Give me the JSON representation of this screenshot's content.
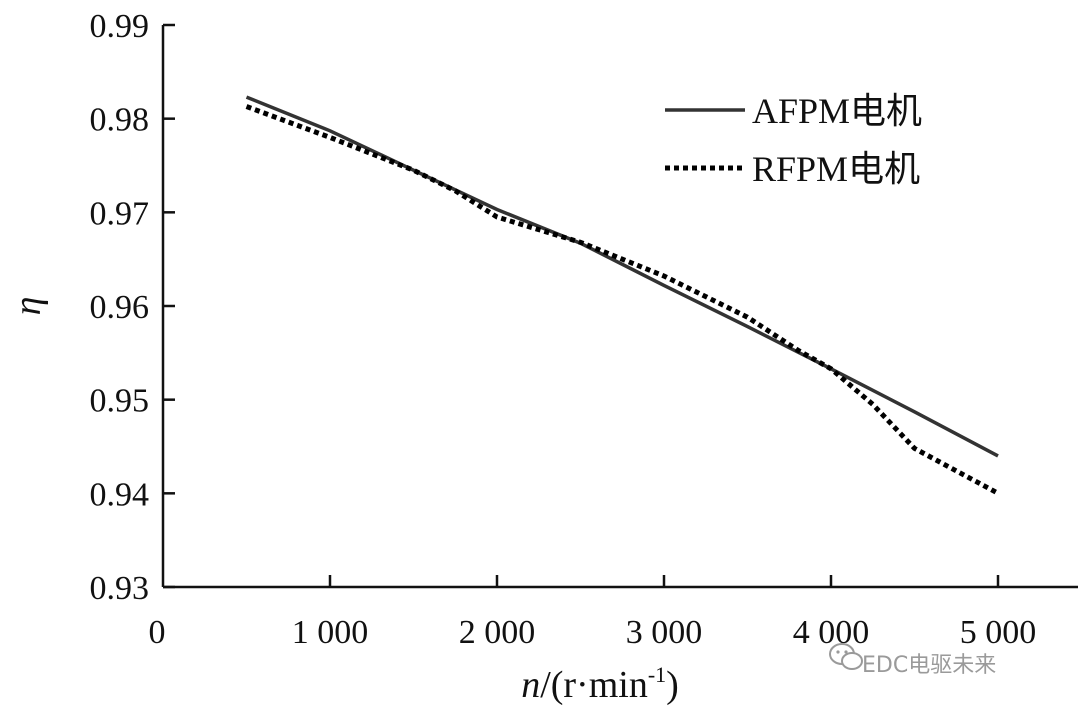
{
  "chart_data": {
    "type": "line",
    "xlabel": {
      "italic": "n",
      "text": "/(r·min",
      "sup": "-1",
      "close": ")"
    },
    "ylabel": "η",
    "xlim": [
      0,
      5500
    ],
    "ylim": [
      0.93,
      0.99
    ],
    "xticks": [
      0,
      1000,
      2000,
      3000,
      4000,
      5000
    ],
    "xtick_labels": [
      "0",
      "1 000",
      "2 000",
      "3 000",
      "4 000",
      "5 000"
    ],
    "yticks": [
      0.93,
      0.94,
      0.95,
      0.96,
      0.97,
      0.98,
      0.99
    ],
    "ytick_labels": [
      "0.93",
      "0.94",
      "0.95",
      "0.96",
      "0.97",
      "0.98",
      "0.99"
    ],
    "legend_position": "top-right",
    "series": [
      {
        "name": "AFPM电机",
        "style": "solid",
        "color": "#333333",
        "x": [
          500,
          1000,
          1500,
          2000,
          2500,
          3000,
          3500,
          4000,
          4500,
          5000
        ],
        "y": [
          0.9823,
          0.9787,
          0.9745,
          0.9703,
          0.9667,
          0.9622,
          0.9578,
          0.9533,
          0.9487,
          0.944
        ]
      },
      {
        "name": "RFPM电机",
        "style": "dotted",
        "color": "#000000",
        "x": [
          500,
          1000,
          1500,
          1750,
          2000,
          2500,
          3000,
          3500,
          3800,
          4000,
          4250,
          4500,
          5000
        ],
        "y": [
          0.9813,
          0.978,
          0.9745,
          0.9723,
          0.9695,
          0.9668,
          0.9632,
          0.9588,
          0.9553,
          0.9533,
          0.9495,
          0.9448,
          0.94
        ]
      }
    ]
  },
  "watermark": {
    "icon": "wechat-icon",
    "text": "EDC电驱未来"
  }
}
